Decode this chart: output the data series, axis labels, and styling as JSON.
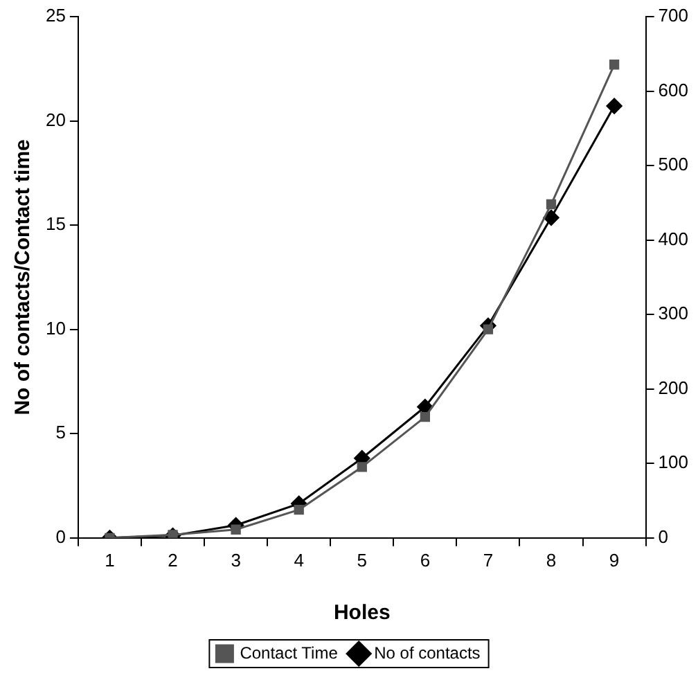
{
  "chart_data": {
    "type": "line",
    "xlabel": "Holes",
    "ylabel": "No of contacts/Contact time",
    "categories": [
      "1",
      "2",
      "3",
      "4",
      "5",
      "6",
      "7",
      "8",
      "9"
    ],
    "series": [
      {
        "name": "Contact Time",
        "color": "#555555",
        "marker": "square",
        "values": [
          0,
          0.15,
          0.4,
          1.35,
          3.4,
          5.8,
          10.0,
          16.0,
          22.7
        ]
      },
      {
        "name": "No of contacts",
        "color": "#000000",
        "marker": "diamond",
        "axis": "y2",
        "values": [
          0,
          3,
          17,
          46,
          107,
          176,
          285,
          430,
          580
        ]
      }
    ],
    "ylim": [
      0,
      25
    ],
    "yticks": [
      0,
      5,
      10,
      15,
      20,
      25
    ],
    "y2lim": [
      0,
      700
    ],
    "y2ticks": [
      0,
      100,
      200,
      300,
      400,
      500,
      600,
      700
    ],
    "grid": false,
    "legend": "bottom",
    "line_style": "solid"
  }
}
